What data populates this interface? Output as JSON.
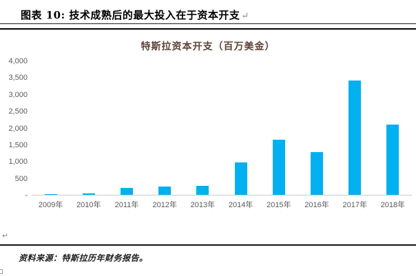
{
  "header": {
    "figure_title": "图表 10:  技术成熟后的最大投入在于资本开支",
    "paragraph_mark": "↵"
  },
  "chart_data": {
    "type": "bar",
    "title": "特斯拉资本开支（百万美金）",
    "title_color": "#5e4238",
    "bar_color": "#00B0F0",
    "categories": [
      "2009年",
      "2010年",
      "2011年",
      "2012年",
      "2013年",
      "2014年",
      "2015年",
      "2016年",
      "2017年",
      "2018年"
    ],
    "values": [
      12,
      40,
      198,
      239,
      264,
      970,
      1635,
      1280,
      3415,
      2101
    ],
    "ylim": [
      0,
      4000
    ],
    "ytick_step": 500,
    "yticks": [
      {
        "value": 4000,
        "label": "4,000"
      },
      {
        "value": 3500,
        "label": "3,500"
      },
      {
        "value": 3000,
        "label": "3,000"
      },
      {
        "value": 2500,
        "label": "2,500"
      },
      {
        "value": 2000,
        "label": "2,000"
      },
      {
        "value": 1500,
        "label": "1,500"
      },
      {
        "value": 1000,
        "label": "1,000"
      },
      {
        "value": 500,
        "label": "500"
      },
      {
        "value": 0,
        "label": "-"
      }
    ],
    "grid": false,
    "legend": "none",
    "axis_color": "#c9c9c9"
  },
  "footer": {
    "paragraph_mark": "↵",
    "source_text": "资料来源：特斯拉历年财务报告。"
  }
}
